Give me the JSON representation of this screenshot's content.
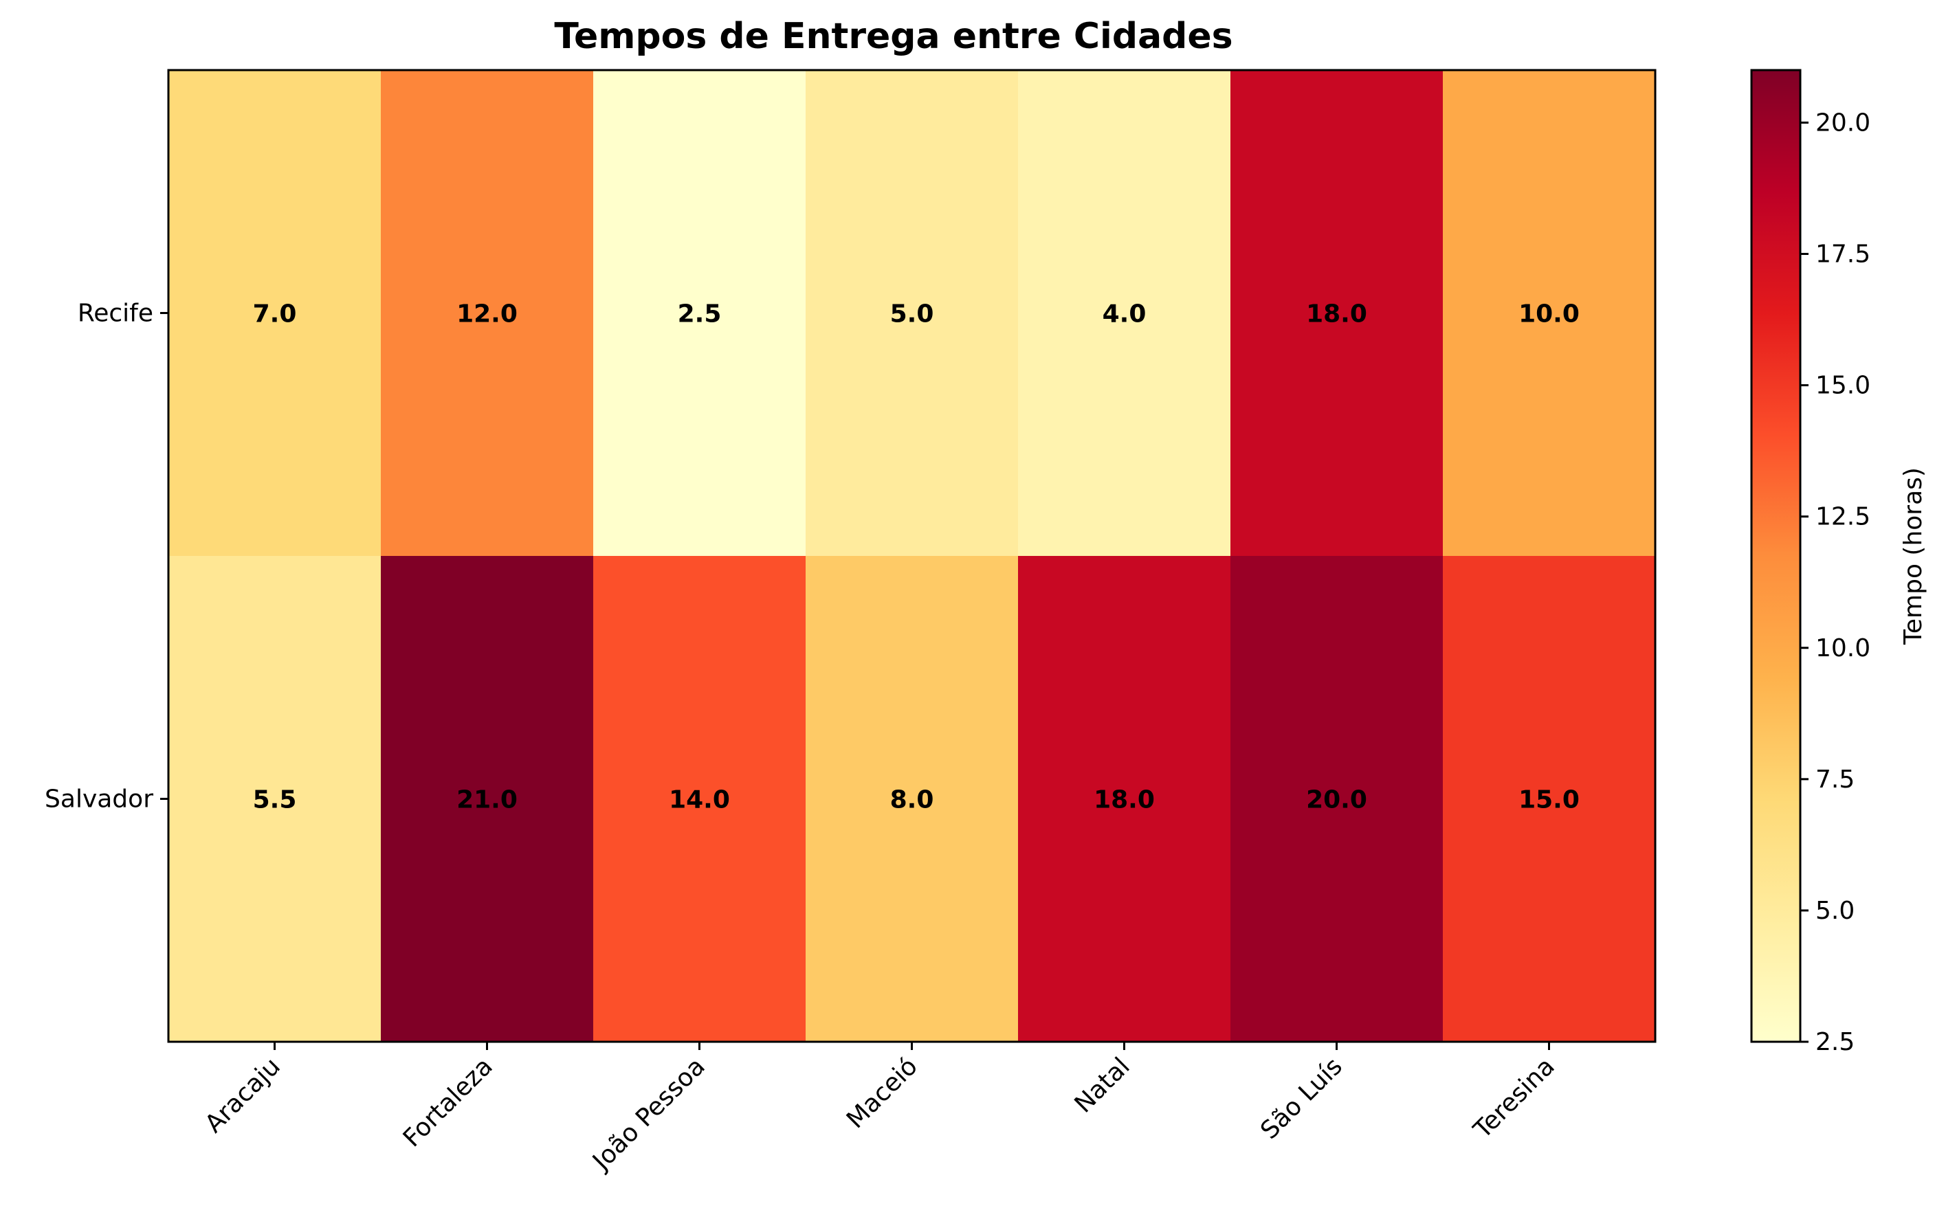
{
  "chart_data": {
    "type": "heatmap",
    "title": "Tempos de Entrega entre Cidades",
    "x_categories": [
      "Aracaju",
      "Fortaleza",
      "João Pessoa",
      "Maceió",
      "Natal",
      "São Luís",
      "Teresina"
    ],
    "y_categories": [
      "Recife",
      "Salvador"
    ],
    "values": [
      [
        7.0,
        12.0,
        2.5,
        5.0,
        4.0,
        18.0,
        10.0
      ],
      [
        5.5,
        21.0,
        14.0,
        8.0,
        18.0,
        20.0,
        15.0
      ]
    ],
    "value_labels": [
      [
        "7.0",
        "12.0",
        "2.5",
        "5.0",
        "4.0",
        "18.0",
        "10.0"
      ],
      [
        "5.5",
        "21.0",
        "14.0",
        "8.0",
        "18.0",
        "20.0",
        "15.0"
      ]
    ],
    "colormap": "YlOrRd",
    "vmin": 2.5,
    "vmax": 21.0,
    "colorbar": {
      "label": "Tempo (horas)",
      "ticks": [
        2.5,
        5.0,
        7.5,
        10.0,
        12.5,
        15.0,
        17.5,
        20.0
      ],
      "tick_labels": [
        "2.5",
        "5.0",
        "7.5",
        "10.0",
        "12.5",
        "15.0",
        "17.5",
        "20.0"
      ]
    },
    "xtick_rotation_deg": 45,
    "grid": false
  }
}
